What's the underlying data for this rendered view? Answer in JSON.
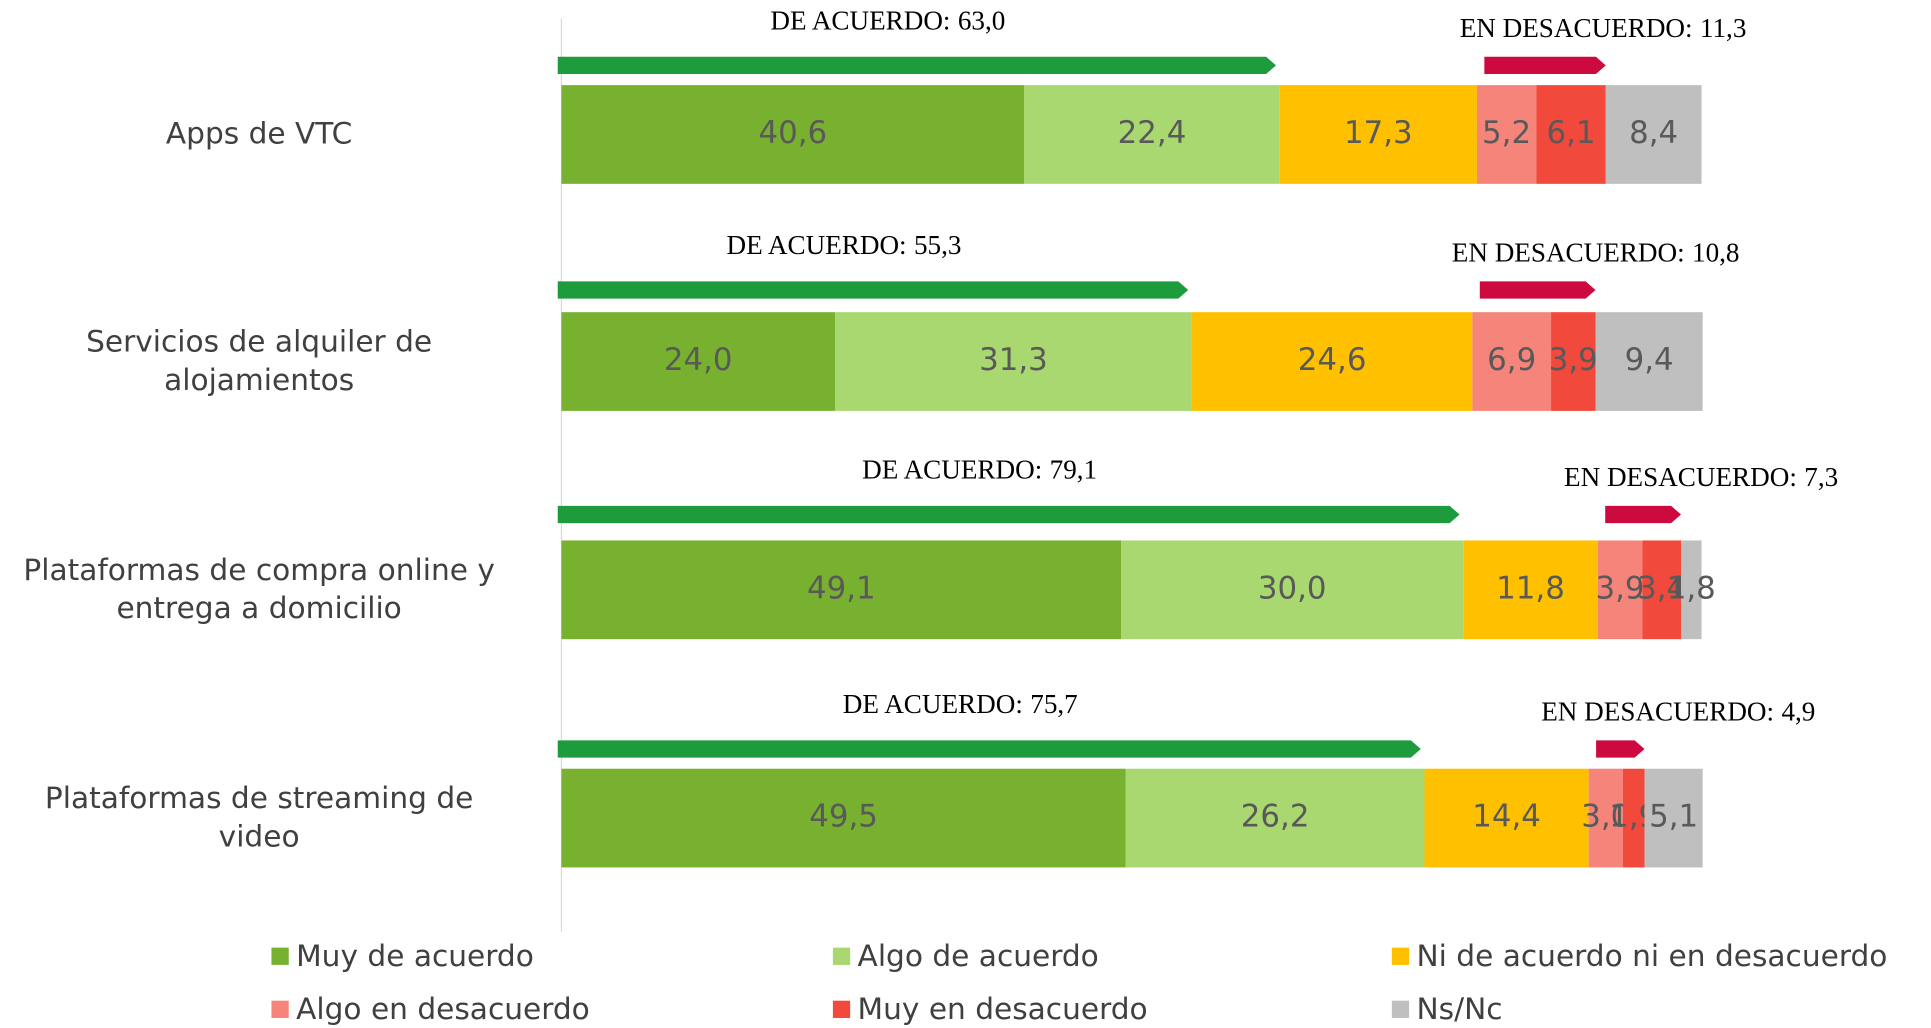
{
  "chart_data": {
    "type": "stacked_bar_horizontal",
    "categories": [
      "Apps de VTC",
      "Servicios de alquiler de\nalojamientos",
      "Plataformas de compra online y\nentrega a domicilio",
      "Plataformas de streaming de\nvideo"
    ],
    "xlim": [
      0,
      100
    ],
    "series": [
      {
        "name": "Muy de acuerdo",
        "color": "#77b12f",
        "values": [
          40.6,
          24.0,
          49.1,
          49.5
        ],
        "value_labels": [
          "40,6",
          "24,0",
          "49,1",
          "49,5"
        ]
      },
      {
        "name": "Algo de acuerdo",
        "color": "#a9d870",
        "values": [
          22.4,
          31.3,
          30.0,
          26.2
        ],
        "value_labels": [
          "22,4",
          "31,3",
          "30,0",
          "26,2"
        ]
      },
      {
        "name": "Ni de acuerdo ni en desacuerdo",
        "color": "#ffc000",
        "values": [
          17.3,
          24.6,
          11.8,
          14.4
        ],
        "value_labels": [
          "17,3",
          "24,6",
          "11,8",
          "14,4"
        ]
      },
      {
        "name": "Algo en desacuerdo",
        "color": "#f5857a",
        "values": [
          5.2,
          6.9,
          3.9,
          3.0
        ],
        "value_labels": [
          "5,2",
          "6,9",
          "3,9",
          "3,0"
        ]
      },
      {
        "name": "Muy en desacuerdo",
        "color": "#f1493b",
        "values": [
          6.1,
          3.9,
          3.4,
          1.9
        ],
        "value_labels": [
          "6,1",
          "3,9",
          "3,4",
          "1,9"
        ]
      },
      {
        "name": "Ns/Nc",
        "color": "#bfbfbf",
        "values": [
          8.4,
          9.4,
          1.8,
          5.1
        ],
        "value_labels": [
          "8,4",
          "9,4",
          "1,8",
          "5,1"
        ]
      }
    ],
    "agree": {
      "label": "DE ACUERDO:",
      "color": "#1e9b3c",
      "values": [
        63.0,
        55.3,
        79.1,
        75.7
      ],
      "value_labels": [
        "63,0",
        "55,3",
        "79,1",
        "75,7"
      ]
    },
    "disagree": {
      "label": "EN DESACUERDO:",
      "color": "#cc0a3f",
      "values": [
        11.3,
        10.8,
        7.3,
        4.9
      ],
      "value_labels": [
        "11,3",
        "10,8",
        "7,3",
        "4,9"
      ]
    }
  }
}
